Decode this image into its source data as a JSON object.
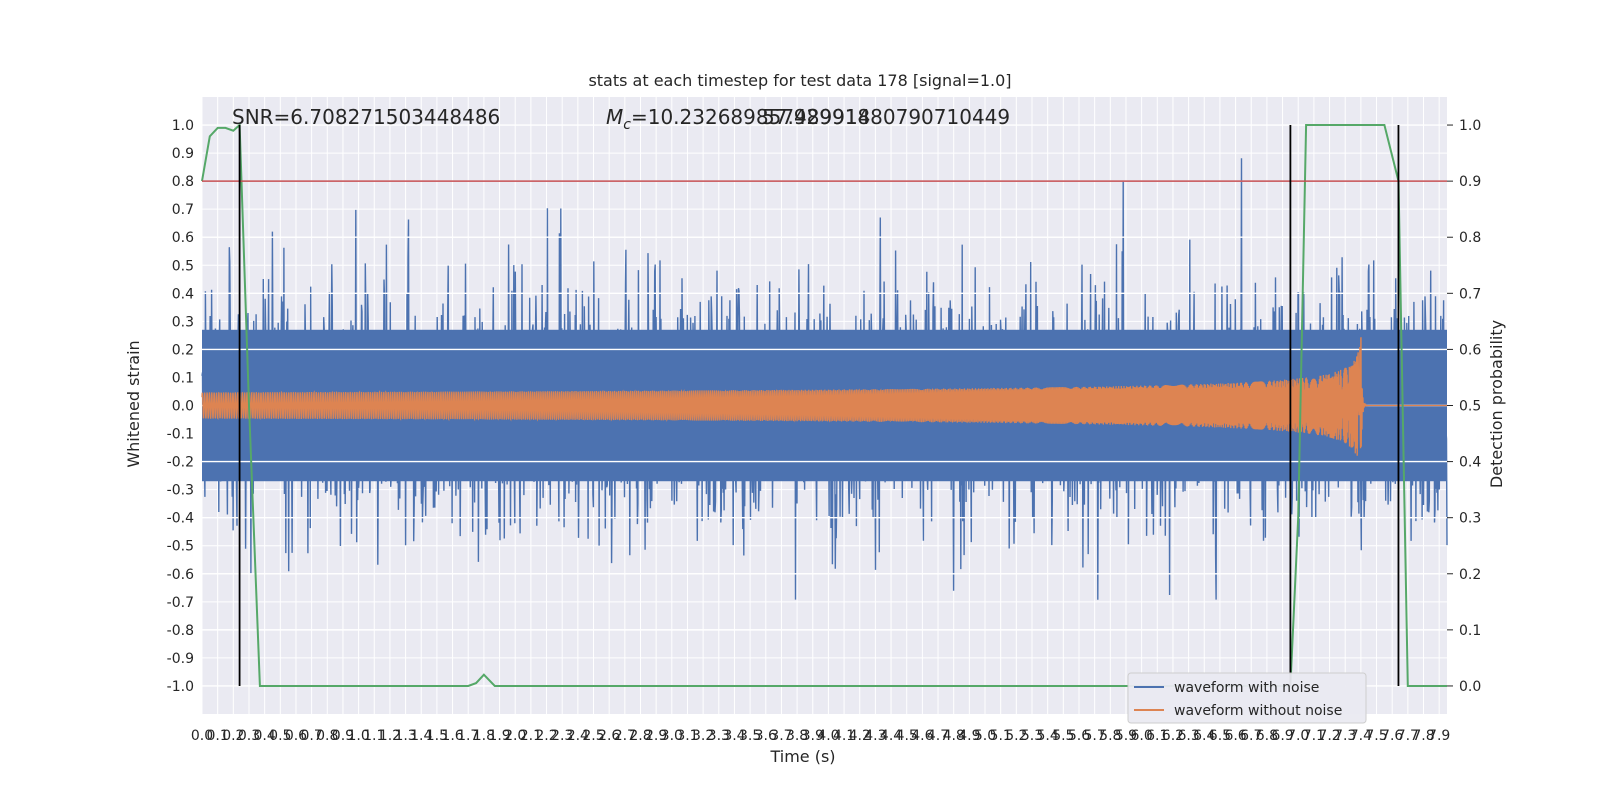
{
  "chart_data": {
    "type": "line",
    "title": "stats at each timestep for test data 178 [signal=1.0]",
    "xlabel": "Time (s)",
    "ylabel": "Whitened strain",
    "y2label": "Detection probability",
    "xlim": [
      0.0,
      7.95
    ],
    "ylim": [
      -1.1,
      1.1
    ],
    "y2lim": [
      -0.05,
      1.05
    ],
    "x_ticks": [
      "0.0",
      "0.1",
      "0.2",
      "0.3",
      "0.4",
      "0.5",
      "0.6",
      "0.7",
      "0.8",
      "0.9",
      "1.0",
      "1.1",
      "1.2",
      "1.3",
      "1.4",
      "1.5",
      "1.6",
      "1.7",
      "1.8",
      "1.9",
      "2.0",
      "2.1",
      "2.2",
      "2.3",
      "2.4",
      "2.5",
      "2.6",
      "2.7",
      "2.8",
      "2.9",
      "3.0",
      "3.1",
      "3.2",
      "3.3",
      "3.4",
      "3.5",
      "3.6",
      "3.7",
      "3.8",
      "3.9",
      "4.0",
      "4.1",
      "4.2",
      "4.3",
      "4.4",
      "4.5",
      "4.6",
      "4.7",
      "4.8",
      "4.9",
      "5.0",
      "5.1",
      "5.2",
      "5.3",
      "5.4",
      "5.5",
      "5.6",
      "5.7",
      "5.8",
      "5.9",
      "6.0",
      "6.1",
      "6.2",
      "6.3",
      "6.4",
      "6.5",
      "6.6",
      "6.7",
      "6.8",
      "6.9",
      "7.0",
      "7.1",
      "7.2",
      "7.3",
      "7.4",
      "7.5",
      "7.6",
      "7.7",
      "7.8",
      "7.9"
    ],
    "y_ticks": [
      "1.0",
      "0.9",
      "0.8",
      "0.7",
      "0.6",
      "0.5",
      "0.4",
      "0.3",
      "0.2",
      "0.1",
      "0.0",
      "-0.1",
      "-0.2",
      "-0.3",
      "-0.4",
      "-0.5",
      "-0.6",
      "-0.7",
      "-0.8",
      "-0.9",
      "-1.0"
    ],
    "y2_ticks": [
      "1.0",
      "0.9",
      "0.8",
      "0.7",
      "0.6",
      "0.5",
      "0.4",
      "0.3",
      "0.2",
      "0.1",
      "0.0"
    ],
    "annotations": {
      "snr": "SNR=6.708271503448486",
      "mc": "=10.232689857489914",
      "mc_symbol": "M",
      "mc_sub": "c",
      "overlap": "57.92991880790710449"
    },
    "threshold": {
      "y2": 0.9,
      "color": "#c44e52"
    },
    "vlines": [
      0.24,
      6.95,
      7.64
    ],
    "series": [
      {
        "name": "waveform with noise",
        "color": "#4c72b0",
        "envelope_center": 0.0,
        "envelope_std": 0.28,
        "peaks_max": 1.0,
        "peaks_min": -0.95
      },
      {
        "name": "waveform without noise",
        "color": "#dd8452",
        "chirp_start_amp": 0.01,
        "chirp_peak_x": 7.4,
        "chirp_peak_amp": 0.29,
        "ringdown_end_x": 7.45
      },
      {
        "name": "detection probability",
        "color": "#55a868",
        "x": [
          0.0,
          0.05,
          0.1,
          0.15,
          0.2,
          0.24,
          0.3,
          0.37,
          1.7,
          1.75,
          1.8,
          1.87,
          6.95,
          7.0,
          7.05,
          7.1,
          7.3,
          7.55,
          7.64,
          7.7,
          7.95
        ],
        "y2": [
          0.9,
          0.98,
          0.995,
          0.995,
          0.99,
          1.0,
          0.5,
          0.0,
          0.0,
          0.005,
          0.02,
          0.0,
          0.0,
          0.3,
          1.0,
          1.0,
          1.0,
          1.0,
          0.9,
          0.0,
          0.0
        ]
      }
    ],
    "legend": {
      "placement": "lower right",
      "entries": [
        "waveform with noise",
        "waveform without noise"
      ]
    },
    "grid": true,
    "background": "#eaeaf2"
  }
}
